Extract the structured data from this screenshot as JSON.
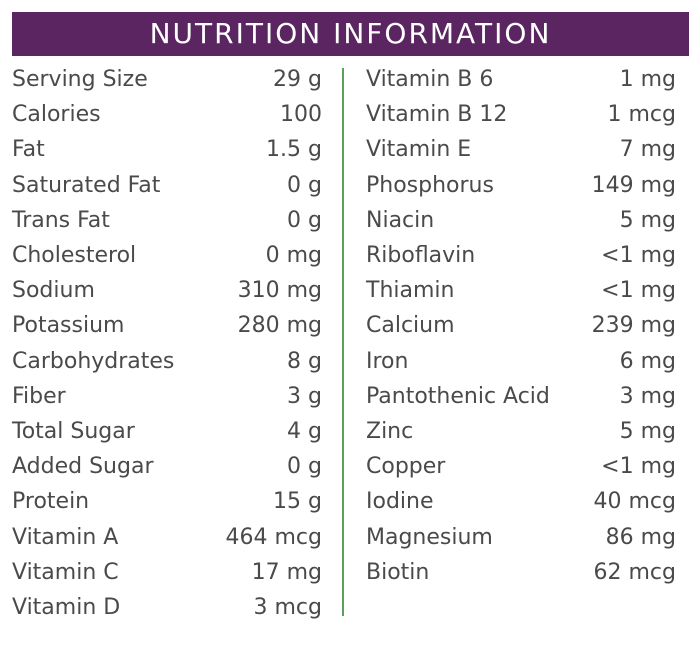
{
  "header": {
    "title": "NUTRITION INFORMATION"
  },
  "colors": {
    "header_background": "#5a2560",
    "header_text": "#ffffff",
    "body_text": "#4a4a4a",
    "divider": "#5aa05a"
  },
  "left_column": [
    {
      "name": "Serving Size",
      "value": "29 g"
    },
    {
      "name": "Calories",
      "value": "100"
    },
    {
      "name": "Fat",
      "value": "1.5 g"
    },
    {
      "name": "Saturated Fat",
      "value": "0 g"
    },
    {
      "name": "Trans Fat",
      "value": "0 g"
    },
    {
      "name": "Cholesterol",
      "value": "0 mg"
    },
    {
      "name": "Sodium",
      "value": "310 mg"
    },
    {
      "name": "Potassium",
      "value": "280 mg"
    },
    {
      "name": "Carbohydrates",
      "value": "8 g"
    },
    {
      "name": "Fiber",
      "value": "3 g"
    },
    {
      "name": "Total Sugar",
      "value": "4 g"
    },
    {
      "name": "Added Sugar",
      "value": "0 g"
    },
    {
      "name": "Protein",
      "value": "15 g"
    },
    {
      "name": "Vitamin A",
      "value": "464 mcg"
    },
    {
      "name": "Vitamin C",
      "value": "17 mg"
    },
    {
      "name": "Vitamin D",
      "value": "3 mcg"
    }
  ],
  "right_column": [
    {
      "name": "Vitamin B 6",
      "value": "1 mg"
    },
    {
      "name": "Vitamin B 12",
      "value": "1 mcg"
    },
    {
      "name": "Vitamin E",
      "value": "7 mg"
    },
    {
      "name": "Phosphorus",
      "value": "149 mg"
    },
    {
      "name": "Niacin",
      "value": "5 mg"
    },
    {
      "name": "Riboflavin",
      "value": "<1 mg"
    },
    {
      "name": "Thiamin",
      "value": "<1 mg"
    },
    {
      "name": "Calcium",
      "value": "239 mg"
    },
    {
      "name": "Iron",
      "value": "6 mg"
    },
    {
      "name": "Pantothenic Acid",
      "value": "3 mg"
    },
    {
      "name": "Zinc",
      "value": "5 mg"
    },
    {
      "name": "Copper",
      "value": "<1 mg"
    },
    {
      "name": "Iodine",
      "value": "40 mcg"
    },
    {
      "name": "Magnesium",
      "value": "86 mg"
    },
    {
      "name": "Biotin",
      "value": "62 mcg"
    }
  ]
}
